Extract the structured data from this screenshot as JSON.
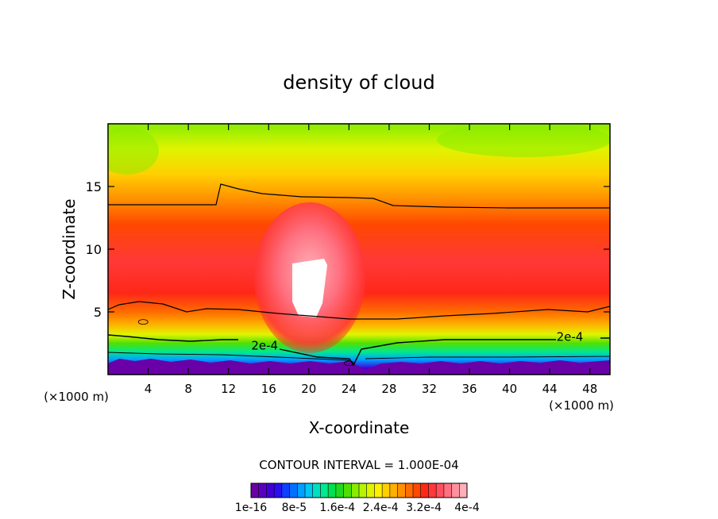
{
  "chart_data": {
    "type": "heatmap",
    "title": "density of cloud",
    "xlabel": "X-coordinate",
    "ylabel": "Z-coordinate",
    "x_unit": "(×1000 m)",
    "y_unit": "(×1000 m)",
    "xlim": [
      0,
      50
    ],
    "ylim": [
      0,
      20
    ],
    "x_ticks": [
      4,
      8,
      12,
      16,
      20,
      24,
      28,
      32,
      36,
      40,
      44,
      48
    ],
    "y_ticks": [
      5,
      10,
      15
    ],
    "grid": false,
    "contour_interval": "CONTOUR INTERVAL = 1.000E-04",
    "contour_labels": [
      {
        "text": "2e-4",
        "x": 15.6,
        "z": 2.3
      },
      {
        "text": "2e-4",
        "x": 46.0,
        "z": 3.0
      }
    ],
    "colorbar": {
      "tick_labels": [
        "1e-16",
        "8e-5",
        "1.6e-4",
        "2.4e-4",
        "3.2e-4",
        "4e-4"
      ],
      "tick_values": [
        0,
        8e-05,
        0.00016,
        0.00024,
        0.00032,
        0.0004
      ],
      "colors": [
        "#6a00a8",
        "#5a00c0",
        "#4200d8",
        "#2a10f0",
        "#1040ff",
        "#0070ff",
        "#00a0ff",
        "#00c8f0",
        "#00e0c0",
        "#00e890",
        "#00e050",
        "#20d820",
        "#50e000",
        "#88ec00",
        "#b8f400",
        "#e0f400",
        "#fff000",
        "#ffd000",
        "#ffb000",
        "#ff9000",
        "#ff6c00",
        "#ff4800",
        "#ff2818",
        "#ff3838",
        "#ff5060",
        "#ff7080",
        "#ff90a0",
        "#ffb0b8"
      ]
    },
    "contours_kde": [
      {
        "x": 3.5,
        "z": 4.2
      },
      {
        "x": 24.0,
        "z": 0.9
      }
    ],
    "field_stops_by_height": [
      {
        "z": 0.5,
        "level": 2
      },
      {
        "z": 1.2,
        "level": 6
      },
      {
        "z": 1.8,
        "level": 9
      },
      {
        "z": 2.5,
        "level": 12
      },
      {
        "z": 3.2,
        "level": 15
      },
      {
        "z": 4.0,
        "level": 18
      },
      {
        "z": 5.0,
        "level": 20
      },
      {
        "z": 6.5,
        "level": 22
      },
      {
        "z": 9.0,
        "level": 23
      },
      {
        "z": 12.0,
        "level": 21
      },
      {
        "z": 14.0,
        "level": 19
      },
      {
        "z": 16.0,
        "level": 17
      },
      {
        "z": 18.0,
        "level": 15
      },
      {
        "z": 20.0,
        "level": 13
      }
    ],
    "cloud_core": {
      "x_range": [
        17.0,
        23.0
      ],
      "z_range": [
        2.5,
        13.0
      ],
      "max_level": 27
    }
  }
}
